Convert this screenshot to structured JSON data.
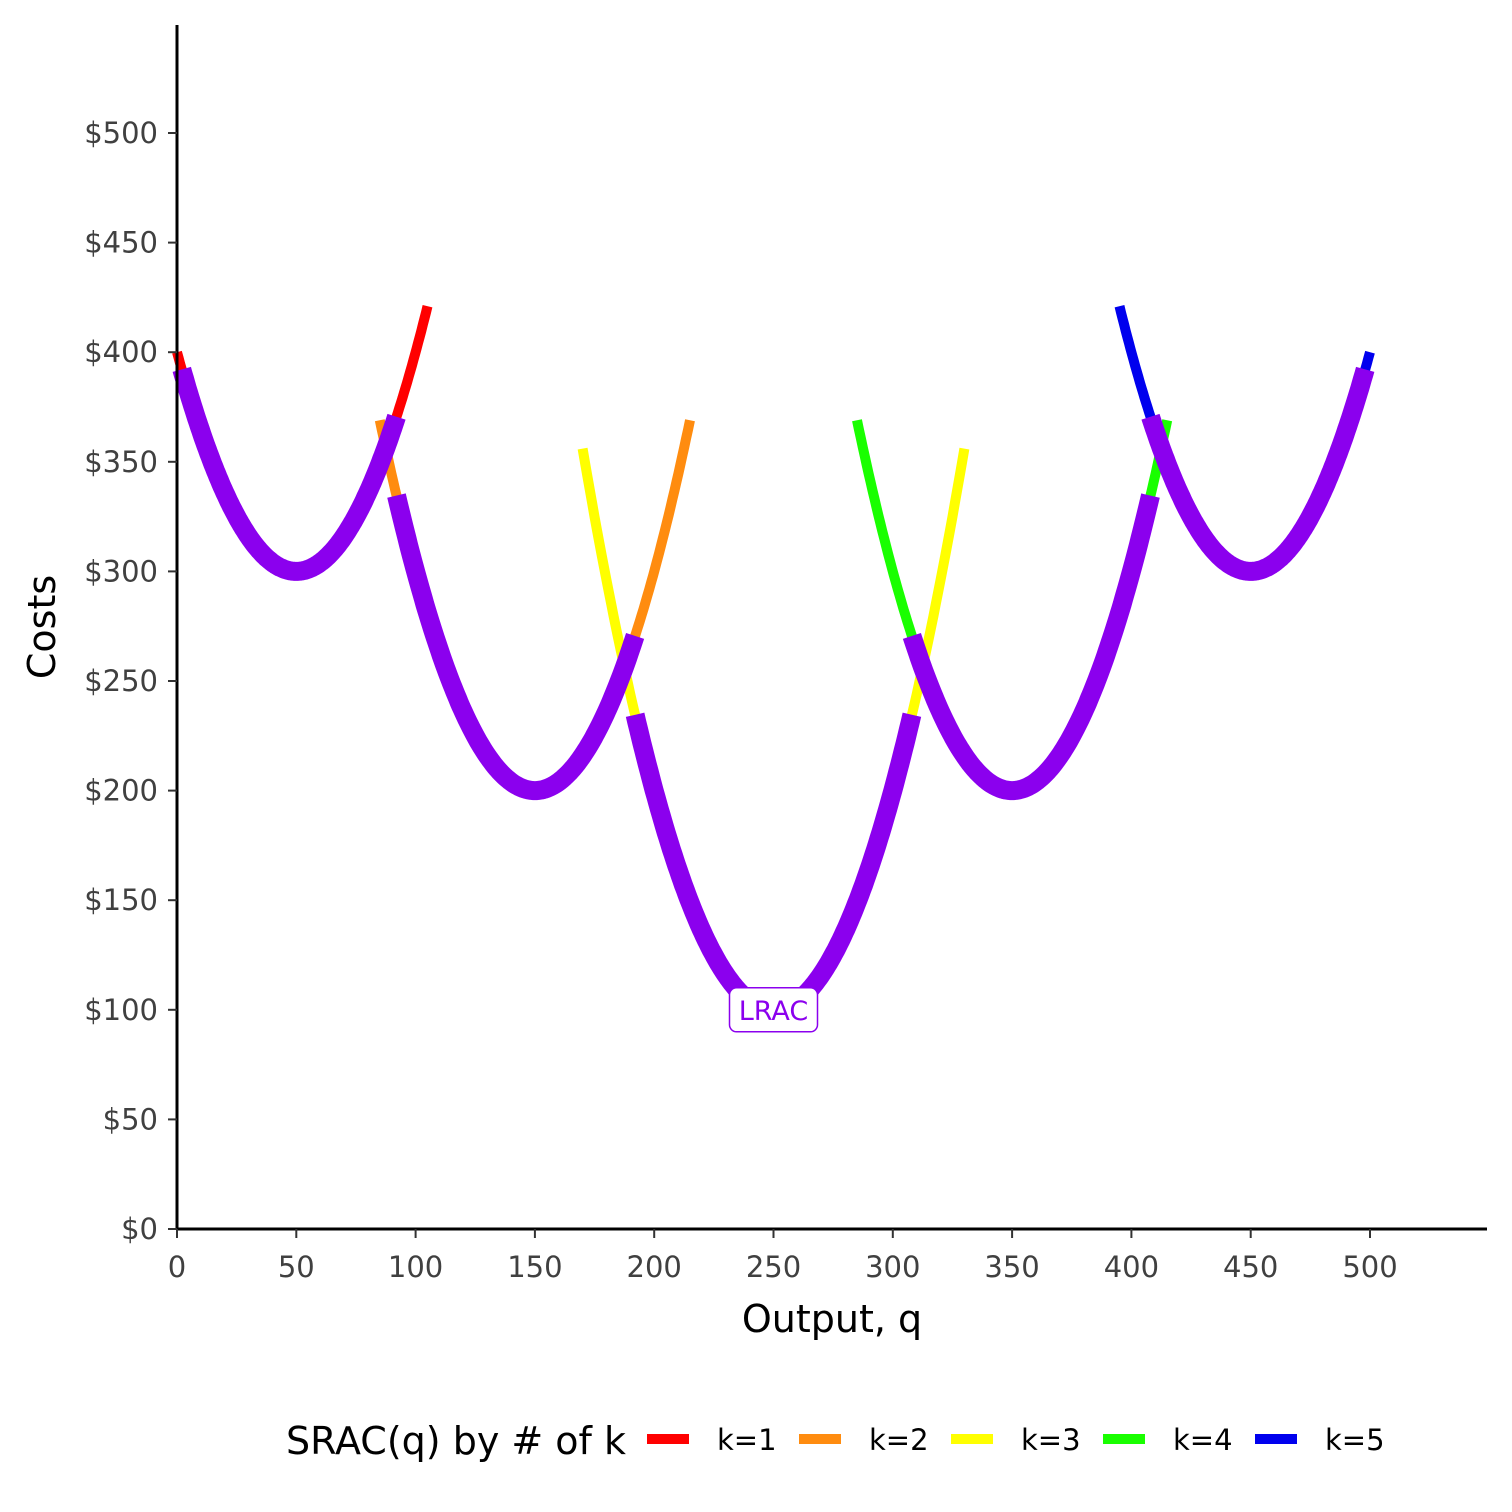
{
  "chart_data": {
    "type": "line",
    "xlabel": "Output, q",
    "ylabel": "Costs",
    "xlim": [
      0,
      550
    ],
    "ylim": [
      0,
      550
    ],
    "x_ticks": [
      0,
      50,
      100,
      150,
      200,
      250,
      300,
      350,
      400,
      450,
      500
    ],
    "x_tick_labels": [
      "0",
      "50",
      "100",
      "150",
      "200",
      "250",
      "300",
      "350",
      "400",
      "450",
      "500"
    ],
    "y_ticks": [
      0,
      50,
      100,
      150,
      200,
      250,
      300,
      350,
      400,
      450,
      500
    ],
    "y_tick_labels": [
      "$0",
      "$50",
      "$100",
      "$150",
      "$200",
      "$250",
      "$300",
      "$350",
      "$400",
      "$450",
      "$500"
    ],
    "legend": {
      "title": "SRAC(q) by # of k",
      "position": "bottom",
      "entries": [
        {
          "label": "k=1",
          "color": "#ff0000"
        },
        {
          "label": "k=2",
          "color": "#ff8c0f"
        },
        {
          "label": "k=3",
          "color": "#ffff00"
        },
        {
          "label": "k=4",
          "color": "#19ff00"
        },
        {
          "label": "k=5",
          "color": "#0000ee"
        }
      ]
    },
    "series": [
      {
        "name": "k=1",
        "color": "#ff0000",
        "formula": "0.04*(q-50)^2+300",
        "x_range": [
          0,
          105
        ]
      },
      {
        "name": "k=2",
        "color": "#ff8c0f",
        "formula": "0.04*(q-150)^2+200",
        "x_range": [
          85,
          215
        ]
      },
      {
        "name": "k=3",
        "color": "#ffff00",
        "formula": "0.04*(q-250)^2+100",
        "x_range": [
          170,
          330
        ]
      },
      {
        "name": "k=4",
        "color": "#19ff00",
        "formula": "0.04*(q-350)^2+200",
        "x_range": [
          285,
          415
        ]
      },
      {
        "name": "k=5",
        "color": "#0000ee",
        "formula": "0.04*(q-450)^2+300",
        "x_range": [
          395,
          500
        ]
      }
    ],
    "lrac": {
      "label": "LRAC",
      "color": "#8b00ee",
      "segments": [
        {
          "vertex_q": 50,
          "vertex_cost": 300,
          "x_range": [
            2,
            92
          ]
        },
        {
          "vertex_q": 150,
          "vertex_cost": 200,
          "x_range": [
            92,
            192
          ]
        },
        {
          "vertex_q": 250,
          "vertex_cost": 100,
          "x_range": [
            192,
            308
          ]
        },
        {
          "vertex_q": 350,
          "vertex_cost": 200,
          "x_range": [
            308,
            408
          ]
        },
        {
          "vertex_q": 450,
          "vertex_cost": 300,
          "x_range": [
            408,
            498
          ]
        }
      ],
      "label_position": [
        250,
        100
      ]
    }
  }
}
